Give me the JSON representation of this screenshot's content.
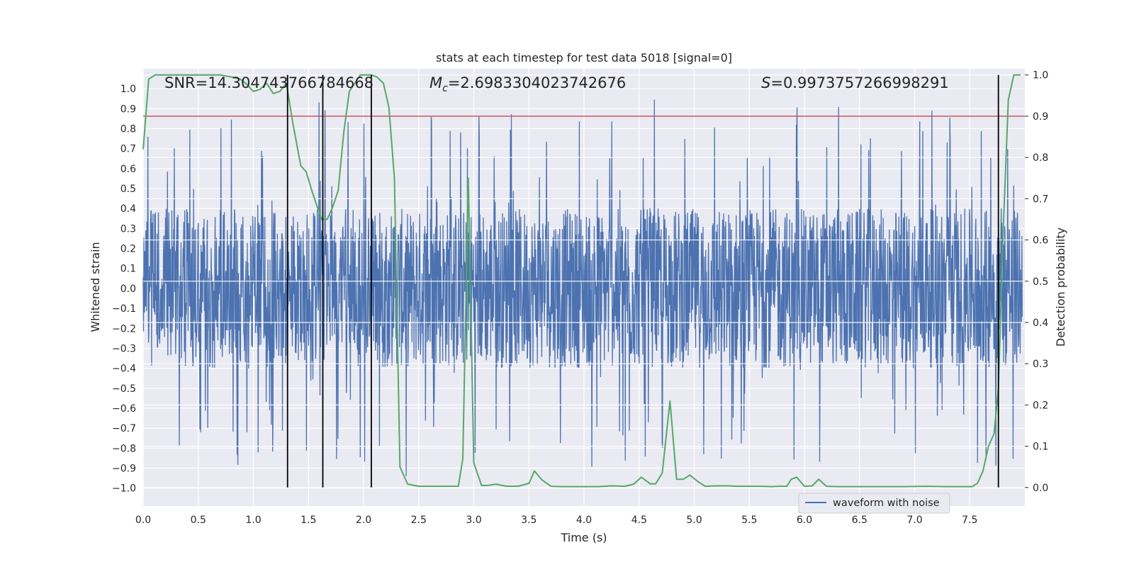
{
  "chart_data": {
    "type": "line",
    "title": "stats at each timestep for test data 5018 [signal=0]",
    "xlabel": "Time (s)",
    "ylabel_left": "Whitened strain",
    "ylabel_right": "Detection probability",
    "xlim": [
      0.0,
      8.0
    ],
    "ylim_left": [
      -1.09,
      1.1
    ],
    "ylim_right": [
      -0.045,
      1.015
    ],
    "grid": true,
    "x_ticks": [
      "0.0",
      "0.5",
      "1.0",
      "1.5",
      "2.0",
      "2.5",
      "3.0",
      "3.5",
      "4.0",
      "4.5",
      "5.0",
      "5.5",
      "6.0",
      "6.5",
      "7.0",
      "7.5"
    ],
    "y_ticks_left": [
      "1.0",
      "0.9",
      "0.8",
      "0.7",
      "0.6",
      "0.5",
      "0.4",
      "0.3",
      "0.2",
      "0.1",
      "0.0",
      "-0.1",
      "-0.2",
      "-0.3",
      "-0.4",
      "-0.5",
      "-0.6",
      "-0.7",
      "-0.8",
      "-0.9",
      "-1.0"
    ],
    "y_ticks_right": [
      "1.0",
      "0.9",
      "0.8",
      "0.7",
      "0.6",
      "0.5",
      "0.4",
      "0.3",
      "0.2",
      "0.1",
      "0.0"
    ],
    "annotations": {
      "snr": "SNR=14.304743766784668",
      "mc_symbol": "M",
      "mc_sub": "c",
      "mc_value": "=2.6983304023742676",
      "s_symbol": "S",
      "s_value": "=0.9973757266998291"
    },
    "threshold": {
      "axis": "right",
      "value": 0.9,
      "color": "#c44e52"
    },
    "vertical_markers": {
      "x": [
        1.31,
        1.63,
        2.07,
        7.76
      ],
      "color": "#000000"
    },
    "series": [
      {
        "name": "waveform with noise",
        "axis": "left",
        "color": "#4c72b0",
        "kind": "noise",
        "envelope": 0.4,
        "peak_max": 0.96,
        "trough_min": -0.94
      },
      {
        "name": "detection probability",
        "axis": "right",
        "color": "#55a868",
        "x": [
          0.0,
          0.05,
          0.11,
          0.2,
          0.3,
          0.4,
          0.5,
          0.6,
          0.7,
          0.8,
          0.88,
          0.93,
          1.0,
          1.06,
          1.12,
          1.18,
          1.24,
          1.3,
          1.36,
          1.43,
          1.48,
          1.53,
          1.58,
          1.62,
          1.67,
          1.72,
          1.77,
          1.82,
          1.87,
          1.92,
          1.97,
          2.02,
          2.07,
          2.12,
          2.18,
          2.23,
          2.28,
          2.33,
          2.4,
          2.5,
          2.6,
          2.7,
          2.75,
          2.8,
          2.86,
          2.9,
          2.95,
          3.0,
          3.07,
          3.13,
          3.2,
          3.3,
          3.4,
          3.5,
          3.55,
          3.62,
          3.7,
          3.8,
          3.9,
          4.0,
          4.13,
          4.25,
          4.37,
          4.45,
          4.52,
          4.6,
          4.65,
          4.71,
          4.78,
          4.84,
          4.9,
          4.96,
          5.03,
          5.1,
          5.2,
          5.3,
          5.4,
          5.5,
          5.6,
          5.7,
          5.77,
          5.84,
          5.88,
          5.93,
          6.0,
          6.07,
          6.13,
          6.2,
          6.3,
          6.5,
          6.7,
          6.9,
          7.1,
          7.3,
          7.4,
          7.52,
          7.57,
          7.62,
          7.67,
          7.72,
          7.76,
          7.8,
          7.85,
          7.9,
          7.96
        ],
        "y": [
          0.82,
          0.99,
          1.0,
          1.0,
          1.0,
          1.0,
          1.0,
          1.0,
          1.0,
          0.995,
          0.99,
          0.98,
          0.96,
          0.965,
          0.98,
          0.955,
          0.96,
          0.98,
          0.88,
          0.78,
          0.765,
          0.72,
          0.68,
          0.65,
          0.65,
          0.68,
          0.72,
          0.86,
          0.96,
          0.98,
          1.0,
          1.0,
          1.0,
          0.995,
          0.98,
          0.92,
          0.75,
          0.05,
          0.008,
          0.003,
          0.003,
          0.003,
          0.003,
          0.003,
          0.003,
          0.07,
          0.75,
          0.06,
          0.005,
          0.005,
          0.008,
          0.003,
          0.003,
          0.01,
          0.04,
          0.018,
          0.003,
          0.002,
          0.002,
          0.002,
          0.002,
          0.004,
          0.003,
          0.008,
          0.025,
          0.009,
          0.009,
          0.035,
          0.21,
          0.02,
          0.02,
          0.03,
          0.015,
          0.003,
          0.004,
          0.004,
          0.003,
          0.003,
          0.003,
          0.002,
          0.003,
          0.003,
          0.02,
          0.025,
          0.003,
          0.004,
          0.02,
          0.003,
          0.002,
          0.002,
          0.002,
          0.002,
          0.003,
          0.002,
          0.002,
          0.002,
          0.01,
          0.04,
          0.1,
          0.13,
          0.24,
          0.6,
          0.94,
          1.0,
          1.0
        ]
      }
    ],
    "legend": {
      "label": "waveform with noise",
      "color": "#4c72b0",
      "placement": "lower-right"
    }
  }
}
